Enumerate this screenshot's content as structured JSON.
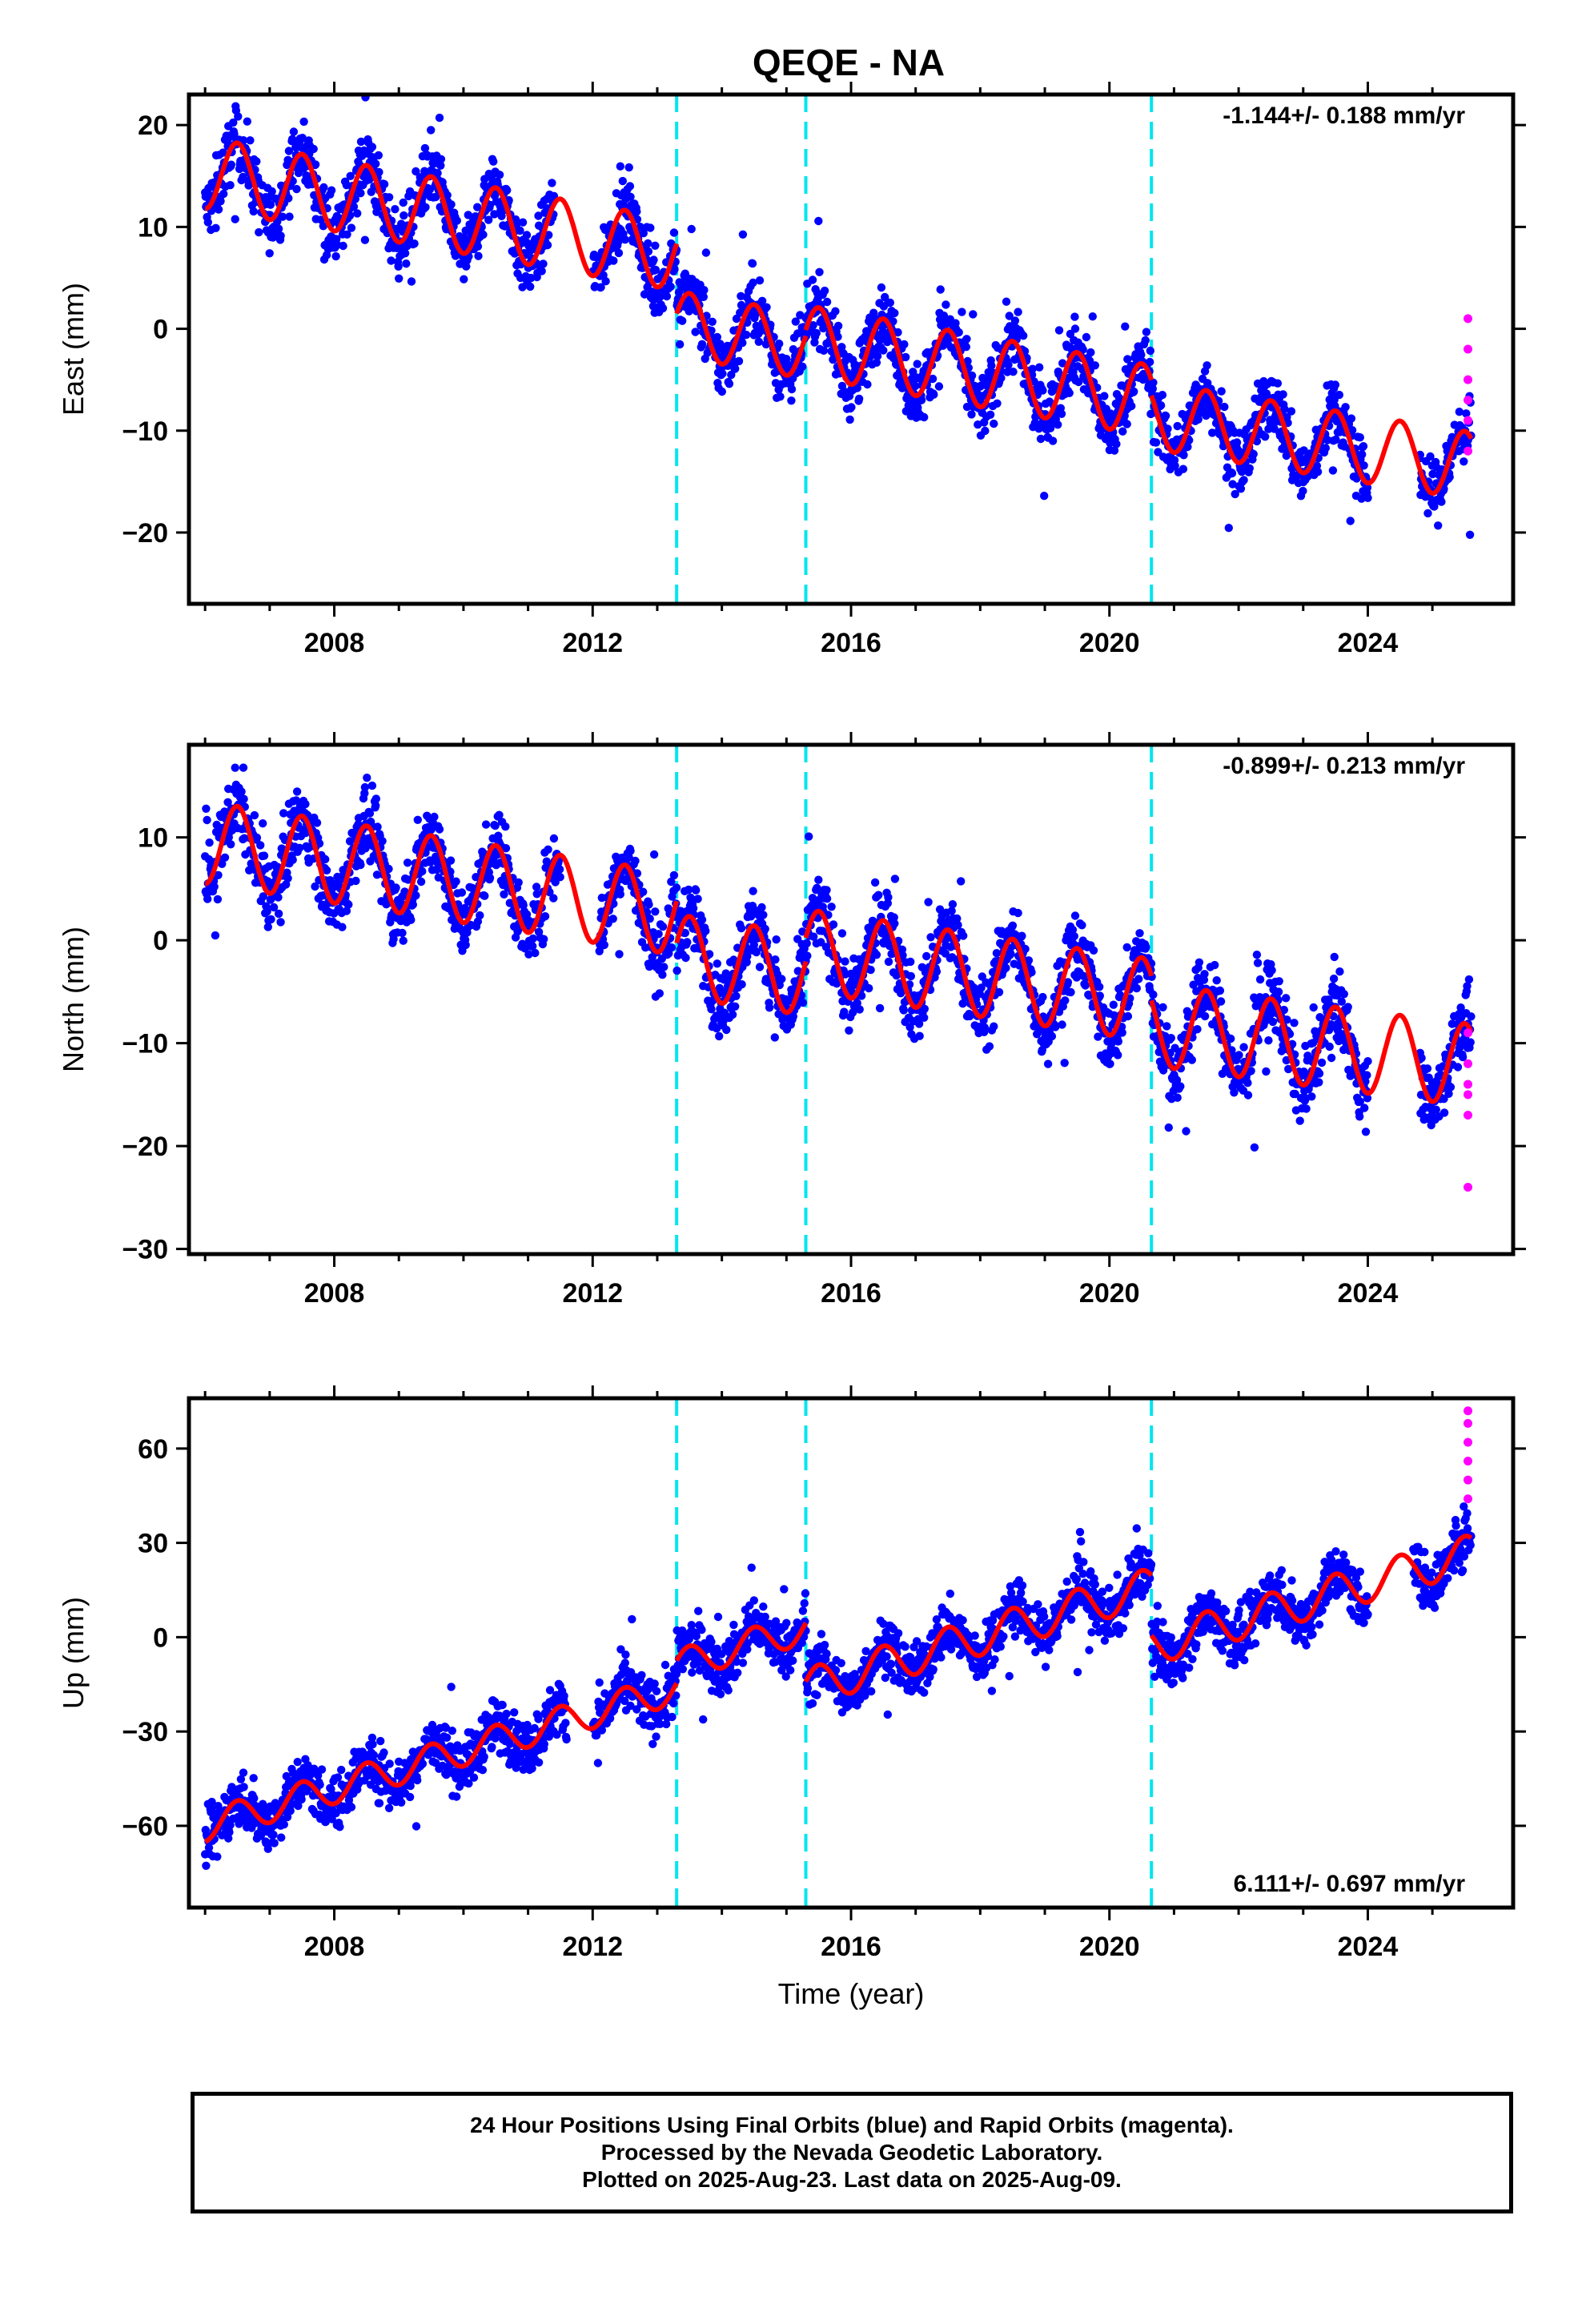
{
  "title": "QEQE - NA",
  "footer": {
    "lines": [
      "24 Hour Positions Using Final Orbits (blue) and Rapid Orbits (magenta).",
      "Processed by the Nevada Geodetic Laboratory.",
      "Plotted on 2025-Aug-23. Last data on 2025-Aug-09."
    ]
  },
  "colors": {
    "final_orbits": "#0000ff",
    "rapid_orbits": "#ff00ff",
    "model": "#ff0000",
    "steps": "#00e5ee"
  },
  "chart_data": [
    {
      "type": "scatter",
      "name": "east",
      "ylabel": "East (mm)",
      "xlabel": "",
      "xlim": [
        2005.75,
        2026.25
      ],
      "ylim": [
        -27,
        23
      ],
      "xticks": [
        "2008",
        "2012",
        "2016",
        "2020",
        "2024"
      ],
      "yticks": [
        "20",
        "10",
        "0",
        "−10",
        "−20"
      ],
      "rate_label": "-1.144+/- 0.188 mm/yr",
      "steps": [
        2013.3,
        2015.3,
        2020.65
      ],
      "segments": [
        {
          "t0": 2006.0,
          "t1": 2013.3,
          "offset": 15.3,
          "trend": -1.1,
          "amp": 3.5
        },
        {
          "t0": 2013.3,
          "t1": 2015.3,
          "offset": 0.5,
          "trend": -1.1,
          "amp": 3.2
        },
        {
          "t0": 2015.3,
          "t1": 2020.65,
          "offset": -1.2,
          "trend": -1.1,
          "amp": 3.5
        },
        {
          "t0": 2020.65,
          "t1": 2025.6,
          "offset": -8.5,
          "trend": -1.0,
          "amp": 3.3
        }
      ],
      "gaps": [
        [
          2011.4,
          2012.0
        ],
        [
          2024.0,
          2024.8
        ]
      ],
      "scatter_sd": 2.2,
      "rapid": {
        "x": 2025.55,
        "y": [
          1,
          -2,
          -5,
          -7,
          -9,
          -12
        ]
      }
    },
    {
      "type": "scatter",
      "name": "north",
      "ylabel": "North (mm)",
      "xlabel": "",
      "xlim": [
        2005.75,
        2026.25
      ],
      "ylim": [
        -30.5,
        19
      ],
      "xticks": [
        "2008",
        "2012",
        "2016",
        "2020",
        "2024"
      ],
      "yticks": [
        "10",
        "0",
        "−10",
        "−20",
        "−30"
      ],
      "rate_label": "-0.899+/- 0.213 mm/yr",
      "steps": [
        2013.3,
        2015.3,
        2020.65
      ],
      "segments": [
        {
          "t0": 2006.0,
          "t1": 2013.3,
          "offset": 9.5,
          "trend": -0.95,
          "amp": 4.0
        },
        {
          "t0": 2013.3,
          "t1": 2015.3,
          "offset": -1.5,
          "trend": -0.9,
          "amp": 4.0
        },
        {
          "t0": 2015.3,
          "t1": 2020.65,
          "offset": -1.0,
          "trend": -0.9,
          "amp": 4.0
        },
        {
          "t0": 2020.65,
          "t1": 2025.6,
          "offset": -8.2,
          "trend": -0.8,
          "amp": 4.0
        }
      ],
      "gaps": [
        [
          2011.5,
          2012.1
        ],
        [
          2024.0,
          2024.8
        ]
      ],
      "scatter_sd": 2.4,
      "rapid": {
        "x": 2025.55,
        "y": [
          -9,
          -12,
          -14,
          -15,
          -17,
          -24
        ]
      }
    },
    {
      "type": "scatter",
      "name": "up",
      "ylabel": "Up (mm)",
      "xlabel": "Time (year)",
      "xlim": [
        2005.75,
        2026.25
      ],
      "ylim": [
        -86,
        76
      ],
      "xticks": [
        "2008",
        "2012",
        "2016",
        "2020",
        "2024"
      ],
      "yticks": [
        "60",
        "30",
        "0",
        "−30",
        "−60"
      ],
      "rate_label": "6.111+/- 0.697 mm/yr",
      "steps": [
        2013.3,
        2015.3,
        2020.65
      ],
      "segments": [
        {
          "t0": 2006.0,
          "t1": 2013.3,
          "offset": -60,
          "trend": 6.0,
          "amp": 5.0
        },
        {
          "t0": 2013.3,
          "t1": 2015.3,
          "offset": -9,
          "trend": 6.0,
          "amp": 5.0
        },
        {
          "t0": 2015.3,
          "t1": 2020.65,
          "offset": -16,
          "trend": 6.0,
          "amp": 6.0
        },
        {
          "t0": 2020.65,
          "t1": 2025.6,
          "offset": -3,
          "trend": 6.0,
          "amp": 6.0
        }
      ],
      "gaps": [
        [
          2011.6,
          2012.0
        ],
        [
          2024.0,
          2024.7
        ]
      ],
      "scatter_sd": 6.0,
      "rapid": {
        "x": 2025.55,
        "y": [
          72,
          68,
          62,
          56,
          50,
          44
        ]
      }
    }
  ]
}
